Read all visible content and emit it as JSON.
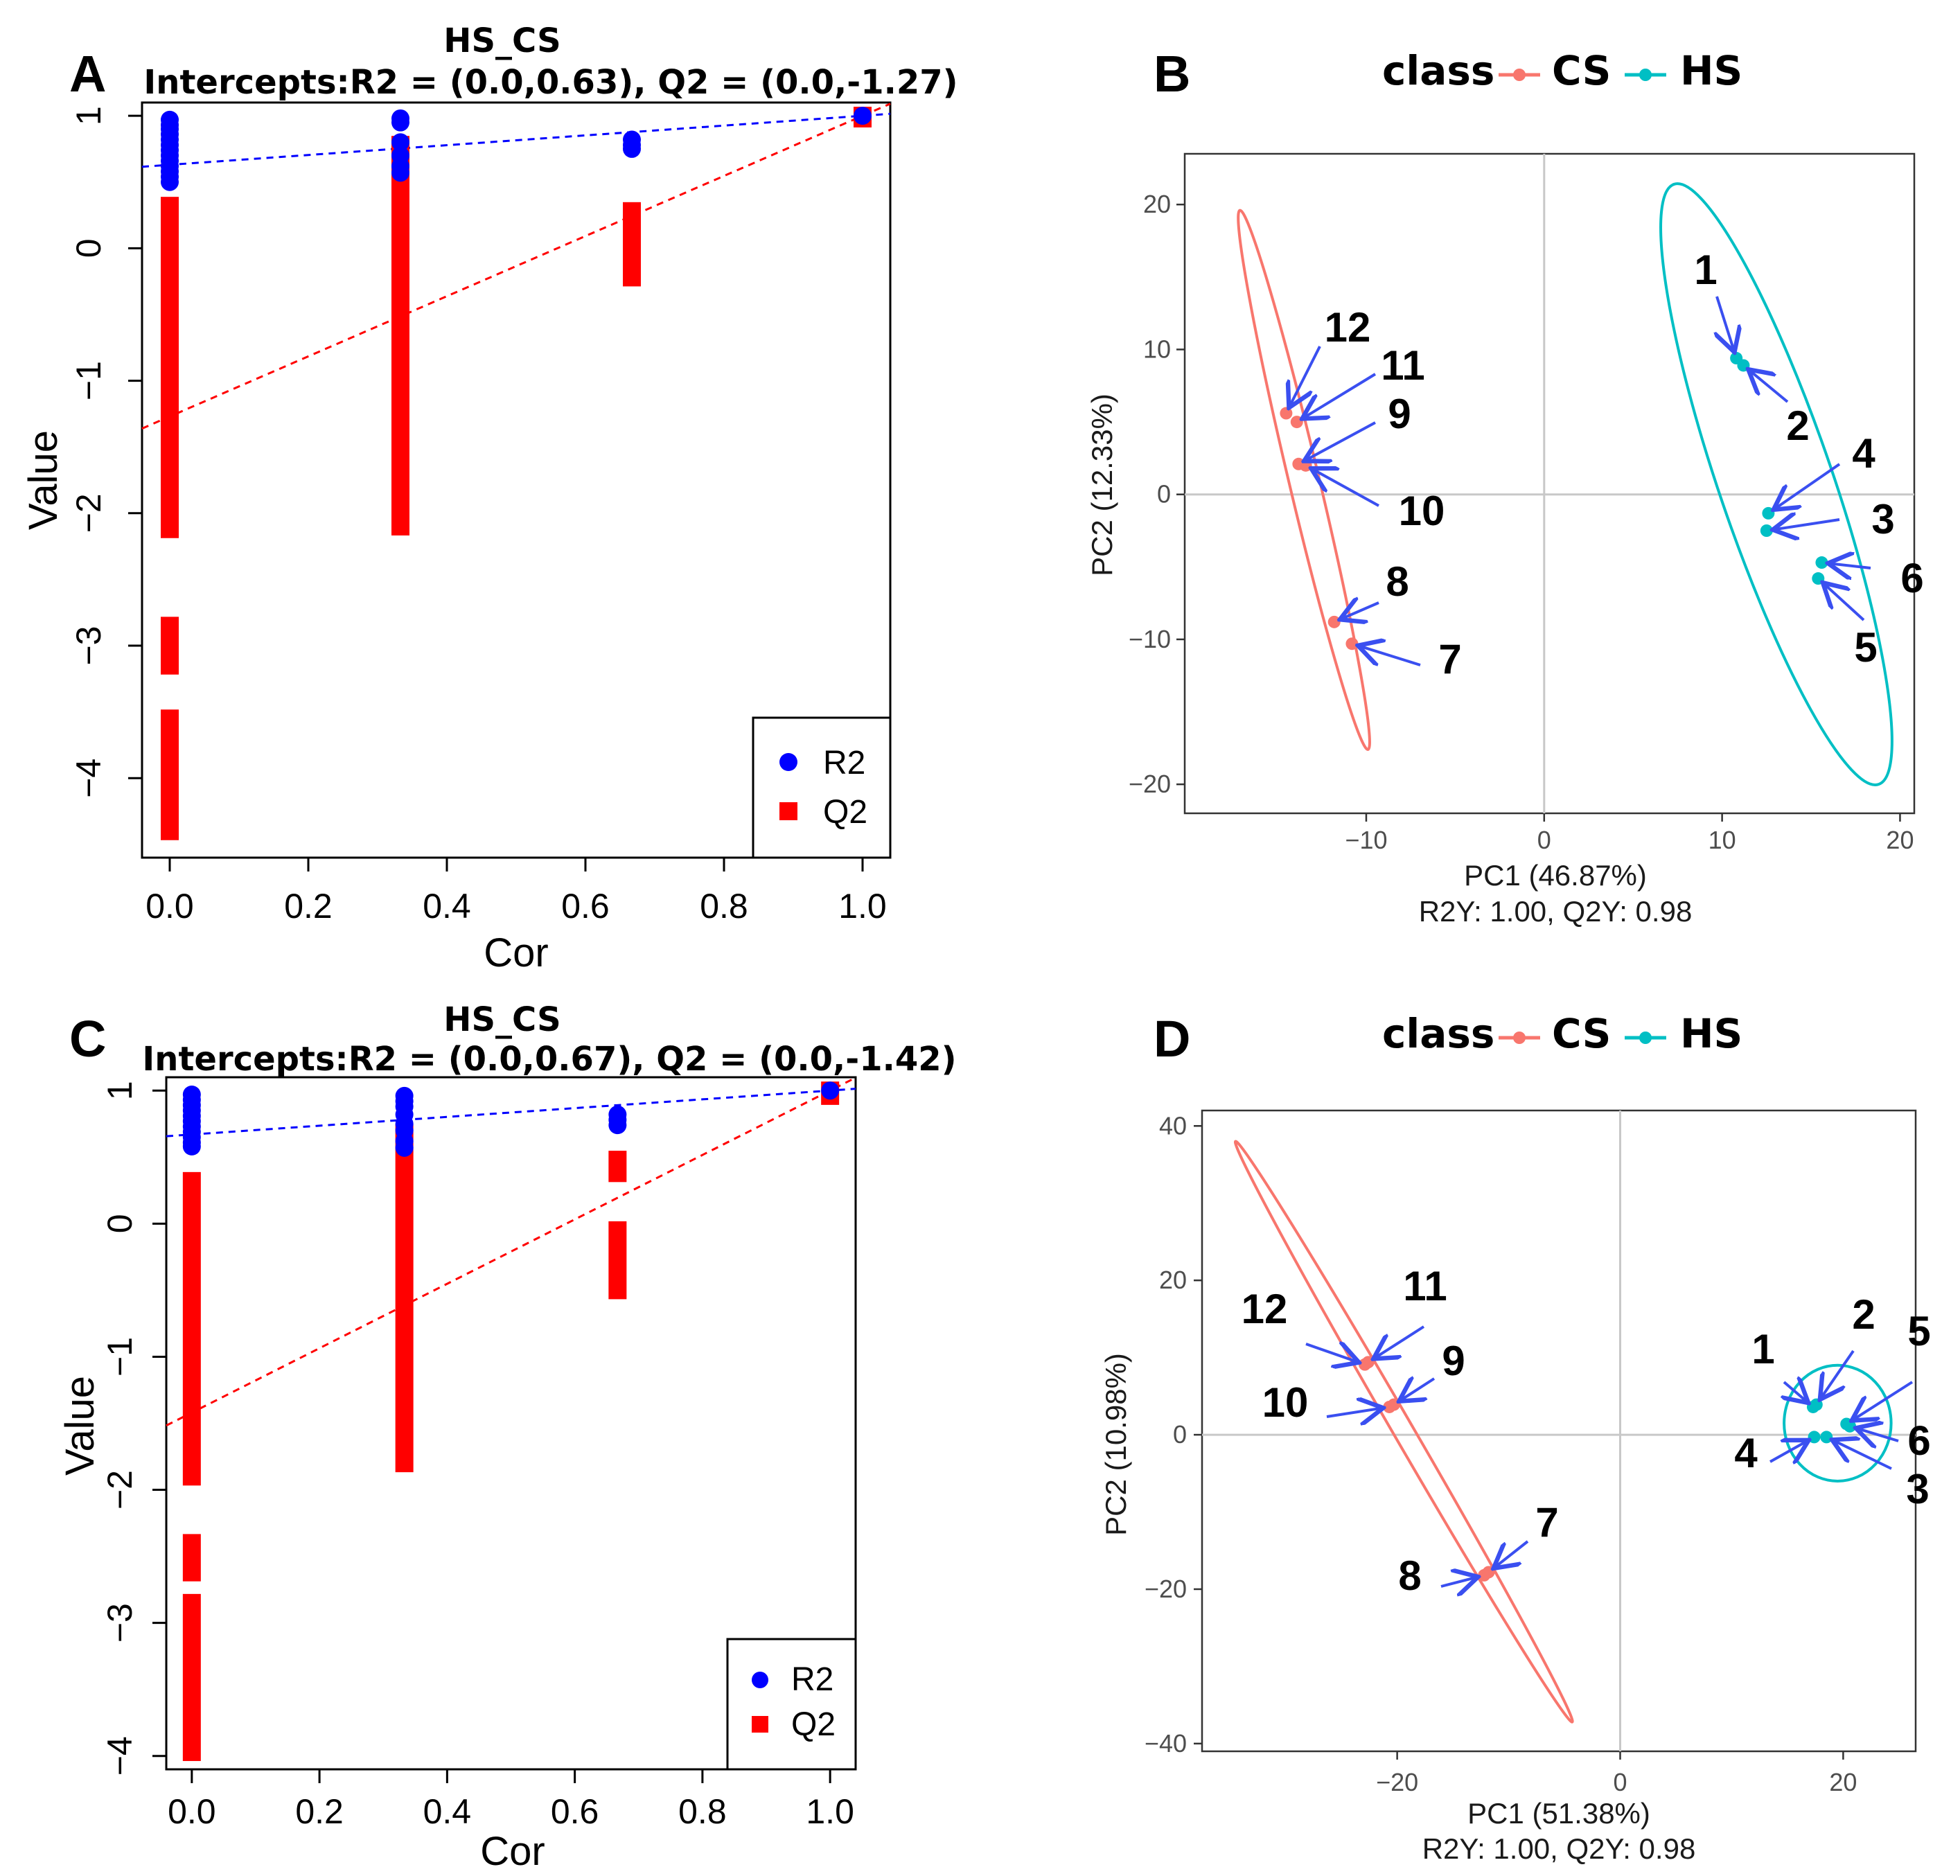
{
  "colors": {
    "r2": "#0000ff",
    "q2": "#ff0000",
    "r2_line": "#0000ff",
    "q2_line": "#ff0000",
    "cs": "#f8766d",
    "hs": "#00bfc4",
    "arrow": "#3a4ff0",
    "axis": "#000000",
    "zero_line": "#c8c8c8"
  },
  "chart_data": [
    {
      "panel": "A",
      "type": "scatter",
      "title": "HS_CS",
      "subtitle": "Intercepts:R2 = (0.0,0.63), Q2 = (0.0,-1.27)",
      "xlabel": "Cor",
      "ylabel": "Value",
      "xlim": [
        -0.04,
        1.04
      ],
      "ylim": [
        -4.6,
        1.1
      ],
      "xticks": [
        "0.0",
        "0.2",
        "0.4",
        "0.6",
        "0.8",
        "1.0"
      ],
      "yticks": [
        "1",
        "0",
        "−1",
        "−2",
        "−3",
        "−4"
      ],
      "legend": {
        "position": "bottom-right",
        "entries": [
          "R2",
          "Q2"
        ]
      },
      "series": [
        {
          "name": "R2",
          "marker": "circle",
          "groups": [
            {
              "cor": 0.0,
              "values": [
                0.97,
                0.93,
                0.9,
                0.86,
                0.82,
                0.78,
                0.74,
                0.7,
                0.66,
                0.62,
                0.58,
                0.54,
                0.5
              ]
            },
            {
              "cor": 0.333,
              "values": [
                0.98,
                0.95,
                0.8,
                0.7,
                0.62,
                0.57
              ]
            },
            {
              "cor": 0.667,
              "values": [
                0.82,
                0.78,
                0.75
              ]
            },
            {
              "cor": 1.0,
              "values": [
                1.0
              ]
            }
          ],
          "intercept_line": [
            [
              0.0,
              0.63
            ],
            [
              1.0,
              1.0
            ]
          ]
        },
        {
          "name": "Q2",
          "marker": "square",
          "segments": [
            {
              "cor": 0.0,
              "from": -1.85,
              "to": 0.32
            },
            {
              "cor": 0.0,
              "from": -2.12,
              "to": -1.9
            },
            {
              "cor": 0.0,
              "from": -3.15,
              "to": -2.85
            },
            {
              "cor": 0.0,
              "from": -4.4,
              "to": -3.55
            },
            {
              "cor": 0.333,
              "from": -1.95,
              "to": 0.78
            },
            {
              "cor": 0.333,
              "from": -2.1,
              "to": -2.0
            },
            {
              "cor": 0.667,
              "from": -0.22,
              "to": 0.28
            },
            {
              "cor": 1.0,
              "from": 0.98,
              "to": 1.0
            }
          ],
          "intercept_line": [
            [
              0.0,
              -1.27
            ],
            [
              1.0,
              1.0
            ]
          ]
        }
      ]
    },
    {
      "panel": "B",
      "type": "scatter",
      "legend_title": "class",
      "legend": {
        "position": "top",
        "entries": [
          "CS",
          "HS"
        ]
      },
      "xlabel": "PC1 (46.87%)",
      "ylabel": "PC2 (12.33%)",
      "footnote": "R2Y: 1.00, Q2Y: 0.98",
      "xlim": [
        -20.2,
        20.8
      ],
      "ylim": [
        -22,
        23.5
      ],
      "xticks": [
        -10,
        0,
        10,
        20
      ],
      "xtick_labels": [
        "−10",
        "0",
        "10",
        "20"
      ],
      "yticks": [
        20,
        10,
        0,
        -10,
        -20
      ],
      "ytick_labels": [
        "20",
        "10",
        "0",
        "−10",
        "−20"
      ],
      "points": [
        {
          "label": "1",
          "class": "HS",
          "x": 10.8,
          "y": 9.4
        },
        {
          "label": "2",
          "class": "HS",
          "x": 11.2,
          "y": 8.9
        },
        {
          "label": "3",
          "class": "HS",
          "x": 12.5,
          "y": -2.5
        },
        {
          "label": "4",
          "class": "HS",
          "x": 12.6,
          "y": -1.3
        },
        {
          "label": "5",
          "class": "HS",
          "x": 15.4,
          "y": -5.8
        },
        {
          "label": "6",
          "class": "HS",
          "x": 15.6,
          "y": -4.7
        },
        {
          "label": "7",
          "class": "CS",
          "x": -10.8,
          "y": -10.3
        },
        {
          "label": "8",
          "class": "CS",
          "x": -11.8,
          "y": -8.8
        },
        {
          "label": "9",
          "class": "CS",
          "x": -13.8,
          "y": 2.1
        },
        {
          "label": "10",
          "class": "CS",
          "x": -13.4,
          "y": 2.0
        },
        {
          "label": "11",
          "class": "CS",
          "x": -13.9,
          "y": 5.0
        },
        {
          "label": "12",
          "class": "CS",
          "x": -14.5,
          "y": 5.6
        }
      ],
      "ellipses": [
        {
          "class": "CS",
          "top": [
            -17.1,
            19.6
          ],
          "bottom": [
            -9.9,
            -17.6
          ],
          "minor_half_width": 0.85
        },
        {
          "class": "HS",
          "top": [
            7.3,
            21.4
          ],
          "bottom": [
            18.8,
            -20.0
          ],
          "minor_half_width": 3.2
        }
      ]
    },
    {
      "panel": "C",
      "type": "scatter",
      "title": "HS_CS",
      "subtitle": "Intercepts:R2 = (0.0,0.67), Q2 = (0.0,-1.42)",
      "xlabel": "Cor",
      "ylabel": "Value",
      "xlim": [
        -0.04,
        1.04
      ],
      "ylim": [
        -4.1,
        1.1
      ],
      "xticks": [
        "0.0",
        "0.2",
        "0.4",
        "0.6",
        "0.8",
        "1.0"
      ],
      "yticks": [
        "1",
        "0",
        "−1",
        "−2",
        "−3",
        "−4"
      ],
      "legend": {
        "position": "bottom-right",
        "entries": [
          "R2",
          "Q2"
        ]
      },
      "series": [
        {
          "name": "R2",
          "marker": "circle",
          "groups": [
            {
              "cor": 0.0,
              "values": [
                0.97,
                0.93,
                0.89,
                0.85,
                0.81,
                0.77,
                0.73,
                0.69,
                0.65,
                0.61,
                0.58
              ]
            },
            {
              "cor": 0.333,
              "values": [
                0.96,
                0.92,
                0.88,
                0.82,
                0.75,
                0.7,
                0.62,
                0.57
              ]
            },
            {
              "cor": 0.667,
              "values": [
                0.82,
                0.78,
                0.74
              ]
            },
            {
              "cor": 1.0,
              "values": [
                1.0
              ]
            }
          ],
          "intercept_line": [
            [
              0.0,
              0.67
            ],
            [
              1.0,
              1.0
            ]
          ]
        },
        {
          "name": "Q2",
          "marker": "square",
          "segments": [
            {
              "cor": 0.0,
              "from": -1.9,
              "to": 0.32
            },
            {
              "cor": 0.0,
              "from": -2.62,
              "to": -2.4
            },
            {
              "cor": 0.0,
              "from": -3.97,
              "to": -2.85
            },
            {
              "cor": 0.333,
              "from": -1.8,
              "to": 0.68
            },
            {
              "cor": 0.667,
              "from": 0.38,
              "to": 0.48
            },
            {
              "cor": 0.667,
              "from": -0.5,
              "to": -0.05
            },
            {
              "cor": 1.0,
              "from": 0.96,
              "to": 1.0
            }
          ],
          "intercept_line": [
            [
              0.0,
              -1.42
            ],
            [
              1.0,
              1.0
            ]
          ]
        }
      ]
    },
    {
      "panel": "D",
      "type": "scatter",
      "legend_title": "class",
      "legend": {
        "position": "top",
        "entries": [
          "CS",
          "HS"
        ]
      },
      "xlabel": "PC1 (51.38%)",
      "ylabel": "PC2 (10.98%)",
      "footnote": "R2Y: 1.00, Q2Y: 0.98",
      "xlim": [
        -37.5,
        26.5
      ],
      "ylim": [
        -41,
        42
      ],
      "xticks": [
        -20,
        0,
        20
      ],
      "xtick_labels": [
        "−20",
        "0",
        "20"
      ],
      "yticks": [
        40,
        20,
        0,
        -20,
        -40
      ],
      "ytick_labels": [
        "40",
        "20",
        "0",
        "−20",
        "−40"
      ],
      "points": [
        {
          "label": "1",
          "class": "HS",
          "x": 17.3,
          "y": 3.6
        },
        {
          "label": "2",
          "class": "HS",
          "x": 17.6,
          "y": 3.9
        },
        {
          "label": "3",
          "class": "HS",
          "x": 18.5,
          "y": -0.3
        },
        {
          "label": "4",
          "class": "HS",
          "x": 17.4,
          "y": -0.3
        },
        {
          "label": "5",
          "class": "HS",
          "x": 20.3,
          "y": 1.4
        },
        {
          "label": "6",
          "class": "HS",
          "x": 20.6,
          "y": 1.1
        },
        {
          "label": "7",
          "class": "CS",
          "x": -11.8,
          "y": -17.8
        },
        {
          "label": "8",
          "class": "CS",
          "x": -12.2,
          "y": -18.2
        },
        {
          "label": "9",
          "class": "CS",
          "x": -20.3,
          "y": 3.9
        },
        {
          "label": "10",
          "class": "CS",
          "x": -20.7,
          "y": 3.6
        },
        {
          "label": "11",
          "class": "CS",
          "x": -22.6,
          "y": 9.4
        },
        {
          "label": "12",
          "class": "CS",
          "x": -22.9,
          "y": 9.1
        }
      ],
      "ellipses": [
        {
          "class": "CS",
          "top": [
            -34.5,
            38.0
          ],
          "bottom": [
            -4.3,
            -37.2
          ],
          "minor_half_width": 0.9
        },
        {
          "class": "HS",
          "center": [
            19.5,
            1.5
          ],
          "rx": 4.8,
          "ry": 7.5
        }
      ]
    }
  ],
  "annotations": {
    "B": [
      {
        "label": "1"
      },
      {
        "label": "2"
      },
      {
        "label": "3"
      },
      {
        "label": "4"
      },
      {
        "label": "5"
      },
      {
        "label": "6"
      },
      {
        "label": "7"
      },
      {
        "label": "8"
      },
      {
        "label": "9"
      },
      {
        "label": "10"
      },
      {
        "label": "11"
      },
      {
        "label": "12"
      }
    ],
    "D": [
      {
        "label": "1"
      },
      {
        "label": "2"
      },
      {
        "label": "3"
      },
      {
        "label": "4"
      },
      {
        "label": "5"
      },
      {
        "label": "6"
      },
      {
        "label": "7"
      },
      {
        "label": "8"
      },
      {
        "label": "9"
      },
      {
        "label": "10"
      },
      {
        "label": "11"
      },
      {
        "label": "12"
      }
    ]
  },
  "panel_letters": [
    "A",
    "B",
    "C",
    "D"
  ]
}
